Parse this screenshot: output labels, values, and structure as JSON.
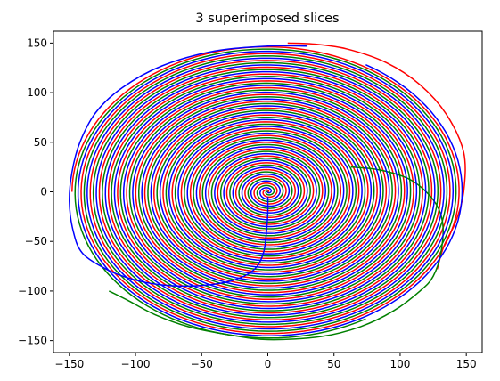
{
  "chart_data": {
    "type": "line",
    "title": "3 superimposed slices",
    "xlabel": "",
    "ylabel": "",
    "xlim": [
      -162,
      162
    ],
    "ylim": [
      -162,
      162
    ],
    "xticks": [
      -150,
      -100,
      -50,
      0,
      50,
      100,
      150
    ],
    "xtick_labels": [
      "−150",
      "−100",
      "−50",
      "0",
      "50",
      "100",
      "150"
    ],
    "yticks": [
      -150,
      -100,
      -50,
      0,
      50,
      100,
      150
    ],
    "ytick_labels": [
      "−150",
      "−100",
      "−50",
      "0",
      "50",
      "100",
      "150"
    ],
    "grid": false,
    "legend": "none",
    "spiral": {
      "turns": 21.5,
      "rotation": "counter-clockwise",
      "start_radius": 0,
      "final_radius": 148
    },
    "series": [
      {
        "color": "#ff0000",
        "phase_offset_deg": 0,
        "spiral_end": [
          15,
          150
        ],
        "tail": [
          [
            15,
            150
          ],
          [
            35,
            149
          ],
          [
            60,
            144
          ],
          [
            90,
            130
          ],
          [
            115,
            108
          ],
          [
            135,
            78
          ],
          [
            148,
            40
          ],
          [
            148,
            0
          ],
          [
            142,
            -30
          ],
          [
            133,
            -55
          ],
          [
            128,
            -78
          ]
        ]
      },
      {
        "color": "#008000",
        "phase_offset_deg": 120,
        "spiral_end": [
          63,
          25
        ],
        "tail": [
          [
            63,
            25
          ],
          [
            85,
            22
          ],
          [
            108,
            12
          ],
          [
            125,
            -8
          ],
          [
            132,
            -30
          ],
          [
            131,
            -60
          ],
          [
            125,
            -85
          ],
          [
            115,
            -100
          ],
          [
            95,
            -120
          ],
          [
            70,
            -136
          ],
          [
            40,
            -146
          ],
          [
            0,
            -149
          ],
          [
            -30,
            -144
          ],
          [
            -60,
            -136
          ],
          [
            -85,
            -124
          ],
          [
            -105,
            -110
          ],
          [
            -120,
            -100
          ]
        ]
      },
      {
        "color": "#0000ff",
        "phase_offset_deg": 240,
        "spiral_end": [
          0,
          -5
        ],
        "tail": [
          [
            0,
            -5
          ],
          [
            0,
            -20
          ],
          [
            -1,
            -40
          ],
          [
            -3,
            -60
          ],
          [
            -8,
            -75
          ],
          [
            -18,
            -85
          ],
          [
            -35,
            -92
          ],
          [
            -60,
            -95
          ],
          [
            -85,
            -93
          ],
          [
            -105,
            -87
          ],
          [
            -122,
            -78
          ],
          [
            -140,
            -62
          ],
          [
            -147,
            -40
          ],
          [
            -150,
            -10
          ],
          [
            -148,
            20
          ],
          [
            -142,
            50
          ],
          [
            -130,
            80
          ],
          [
            -110,
            105
          ],
          [
            -80,
            127
          ],
          [
            -40,
            142
          ],
          [
            0,
            147
          ],
          [
            30,
            147
          ]
        ]
      }
    ]
  }
}
